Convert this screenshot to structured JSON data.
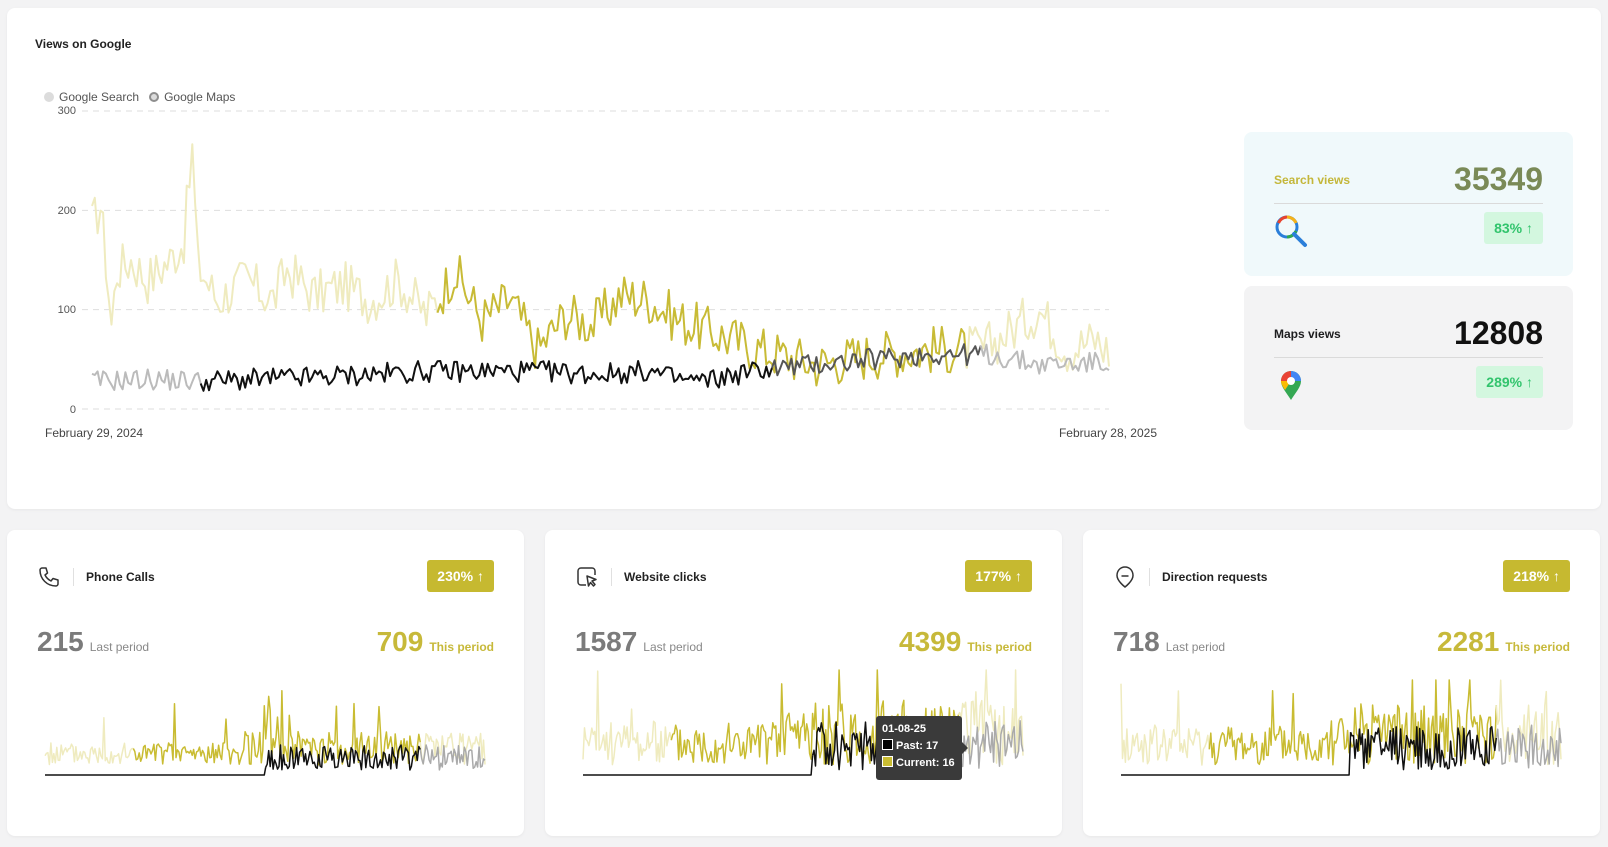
{
  "main": {
    "title": "Views on Google",
    "legend": [
      "Google Search",
      "Google Maps"
    ],
    "y_ticks": [
      "300",
      "200",
      "100",
      "0"
    ],
    "x_start": "February 29, 2024",
    "x_end": "February 28, 2025"
  },
  "chart_data": {
    "type": "line",
    "title": "Views on Google",
    "xlabel": "",
    "ylabel": "",
    "ylim": [
      0,
      300
    ],
    "x_start": "February 29, 2024",
    "x_end": "February 28, 2025",
    "grid": true,
    "legend_position": "top-left",
    "series": [
      {
        "name": "Google Search",
        "color_current": "#c8bb36",
        "color_faded": "#efebbf",
        "anchors": [
          [
            0,
            185
          ],
          [
            3,
            205
          ],
          [
            5,
            150
          ],
          [
            7,
            85
          ],
          [
            9,
            140
          ],
          [
            14,
            150
          ],
          [
            20,
            130
          ],
          [
            28,
            150
          ],
          [
            33,
            170
          ],
          [
            36,
            260
          ],
          [
            38,
            145
          ],
          [
            45,
            110
          ],
          [
            55,
            130
          ],
          [
            65,
            110
          ],
          [
            70,
            140
          ],
          [
            80,
            115
          ],
          [
            90,
            125
          ],
          [
            100,
            110
          ],
          [
            110,
            130
          ],
          [
            120,
            95
          ],
          [
            125,
            115
          ],
          [
            130,
            140
          ],
          [
            140,
            90
          ],
          [
            150,
            110
          ],
          [
            160,
            60
          ],
          [
            170,
            95
          ],
          [
            180,
            85
          ],
          [
            190,
            115
          ],
          [
            200,
            110
          ],
          [
            210,
            90
          ],
          [
            220,
            80
          ],
          [
            240,
            60
          ],
          [
            260,
            45
          ],
          [
            280,
            55
          ],
          [
            300,
            60
          ],
          [
            320,
            60
          ],
          [
            340,
            100
          ],
          [
            350,
            60
          ],
          [
            360,
            70
          ],
          [
            366,
            55
          ]
        ]
      },
      {
        "name": "Google Maps",
        "color_current": "#111111",
        "color_faded": "#bbbbbb",
        "anchors": [
          [
            0,
            28
          ],
          [
            20,
            30
          ],
          [
            40,
            28
          ],
          [
            60,
            30
          ],
          [
            80,
            32
          ],
          [
            100,
            35
          ],
          [
            120,
            38
          ],
          [
            140,
            38
          ],
          [
            160,
            38
          ],
          [
            180,
            35
          ],
          [
            200,
            38
          ],
          [
            210,
            30
          ],
          [
            220,
            28
          ],
          [
            240,
            40
          ],
          [
            260,
            45
          ],
          [
            280,
            50
          ],
          [
            300,
            55
          ],
          [
            320,
            55
          ],
          [
            340,
            45
          ],
          [
            366,
            47
          ]
        ]
      }
    ]
  },
  "stats": {
    "search": {
      "label": "Search views",
      "value": "35349",
      "pct": "83% ↑",
      "icon": "magnifier-icon",
      "pct_value": 83
    },
    "maps": {
      "label": "Maps views",
      "value": "12808",
      "pct": "289% ↑",
      "icon": "maps-pin-icon",
      "pct_value": 289
    }
  },
  "cards": {
    "phone": {
      "title": "Phone Calls",
      "pct": "230% ↑",
      "last": "215",
      "last_label": "Last period",
      "this": "709",
      "this_label": "This period",
      "icon": "phone-icon"
    },
    "website": {
      "title": "Website clicks",
      "pct": "177% ↑",
      "last": "1587",
      "last_label": "Last period",
      "this": "4399",
      "this_label": "This period",
      "icon": "cursor-click-icon"
    },
    "direction": {
      "title": "Direction requests",
      "pct": "218% ↑",
      "last": "718",
      "last_label": "Last period",
      "this": "2281",
      "this_label": "This period",
      "icon": "direction-icon"
    }
  },
  "tooltip": {
    "date": "01-08-25",
    "past": "Past: 17",
    "current": "Current: 16"
  },
  "colors": {
    "accent": "#c7b93a",
    "success_bg": "#d3f7df",
    "success_text": "#32c46d",
    "maps_line": "#111111"
  }
}
